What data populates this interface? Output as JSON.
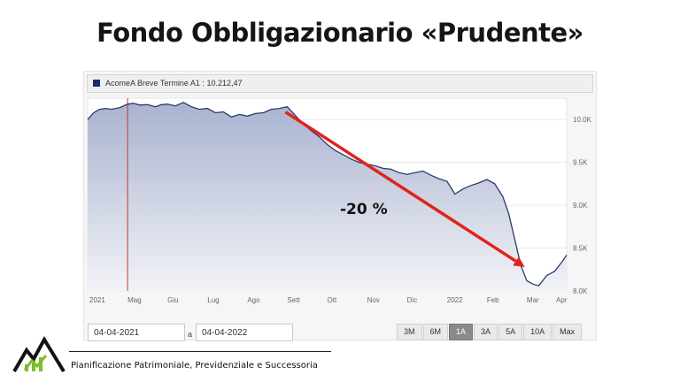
{
  "title": "Fondo Obbligazionario «Prudente»",
  "legend": {
    "name": "AcomeA Breve Termine A1",
    "value": "10.212,47"
  },
  "annotation": {
    "label": "-20 %",
    "color": "#e0231c"
  },
  "footer": {
    "text": "Pianificazione Patrimoniale, Previdenziale e Successoria"
  },
  "date_range": {
    "from": "04-04-2021",
    "separator": "a",
    "to": "04-04-2022"
  },
  "range_buttons": [
    {
      "label": "3M",
      "active": false
    },
    {
      "label": "6M",
      "active": false
    },
    {
      "label": "1A",
      "active": true
    },
    {
      "label": "3A",
      "active": false
    },
    {
      "label": "5A",
      "active": false
    },
    {
      "label": "10A",
      "active": false
    },
    {
      "label": "Max",
      "active": false
    }
  ],
  "colors": {
    "line": "#2b3a6b",
    "fill_top": "#a9b3cf",
    "fill_bottom": "#f2f3f7",
    "marker": "#c0392b",
    "legend_swatch": "#1c2a6b"
  },
  "chart_data": {
    "type": "area",
    "x_ticks": [
      "2021",
      "Mag",
      "Giu",
      "Lug",
      "Ago",
      "Sett",
      "Ott",
      "Nov",
      "Dic",
      "2022",
      "Feb",
      "Mar",
      "Apr"
    ],
    "y_ticks": [
      "10.0K",
      "9.5K",
      "9.0K",
      "8.5K",
      "8.0K"
    ],
    "y_tick_values": [
      10000,
      9500,
      9000,
      8500,
      8000
    ],
    "ylim": [
      8000,
      10250
    ],
    "grid": true,
    "marker_month": 1.0,
    "series": [
      {
        "x": [
          0,
          0.15,
          0.3,
          0.45,
          0.6,
          0.8,
          1.0,
          1.15,
          1.3,
          1.5,
          1.7,
          1.85,
          2.0,
          2.2,
          2.4,
          2.6,
          2.8,
          3.0,
          3.2,
          3.4,
          3.6,
          3.8,
          4.0,
          4.2,
          4.4,
          4.6,
          4.8,
          5.0,
          5.2,
          5.4,
          5.6,
          5.8,
          6.0,
          6.2,
          6.4,
          6.6,
          6.8,
          7.0,
          7.2,
          7.4,
          7.6,
          7.8,
          8.0,
          8.2,
          8.4,
          8.6,
          8.8,
          9.0,
          9.2,
          9.4,
          9.6,
          9.8,
          10.0,
          10.2,
          10.4,
          10.55,
          10.7,
          10.85,
          11.0,
          11.15,
          11.3,
          11.5,
          11.7,
          11.9,
          12.0
        ],
        "y": [
          10000,
          10080,
          10120,
          10130,
          10120,
          10140,
          10180,
          10190,
          10170,
          10175,
          10150,
          10175,
          10180,
          10160,
          10200,
          10150,
          10120,
          10130,
          10080,
          10090,
          10030,
          10060,
          10040,
          10070,
          10080,
          10120,
          10130,
          10150,
          10050,
          9950,
          9870,
          9800,
          9710,
          9640,
          9590,
          9540,
          9500,
          9480,
          9460,
          9430,
          9420,
          9380,
          9360,
          9380,
          9400,
          9350,
          9310,
          9280,
          9130,
          9190,
          9230,
          9260,
          9300,
          9250,
          9100,
          8900,
          8600,
          8300,
          8120,
          8080,
          8060,
          8180,
          8230,
          8350,
          8420
        ]
      }
    ]
  }
}
